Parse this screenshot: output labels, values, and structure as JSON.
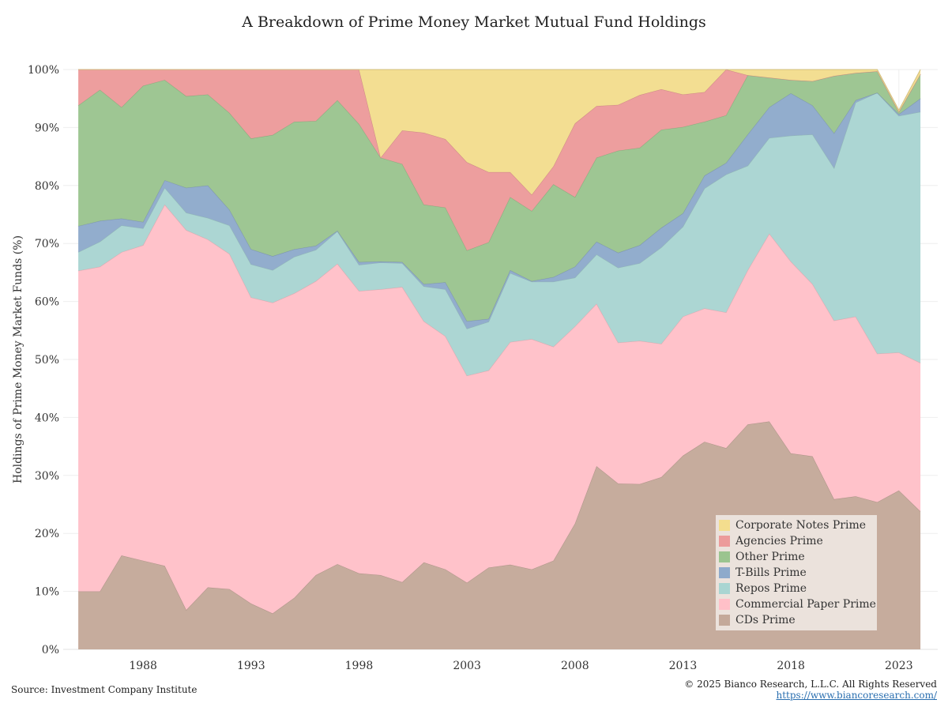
{
  "chart_data": {
    "type": "area",
    "stacked": true,
    "title": "A Breakdown of Prime Money Market Mutual Fund Holdings",
    "xlabel": "",
    "ylabel": "Holdings of Prime Money Market Funds (%)",
    "ylim": [
      0,
      100
    ],
    "xlim": [
      1984.3,
      2024.8
    ],
    "yticks": [
      "0%",
      "10%",
      "20%",
      "30%",
      "40%",
      "50%",
      "60%",
      "70%",
      "80%",
      "90%",
      "100%"
    ],
    "xticks": [
      1988,
      1993,
      1998,
      2003,
      2008,
      2013,
      2018,
      2023
    ],
    "grid": true,
    "legend_position": "bottom-right",
    "x": [
      1985,
      1986,
      1987,
      1988,
      1989,
      1990,
      1991,
      1992,
      1993,
      1994,
      1995,
      1996,
      1997,
      1998,
      1999,
      2000,
      2001,
      2002,
      2003,
      2004,
      2005,
      2006,
      2007,
      2008,
      2009,
      2010,
      2011,
      2012,
      2013,
      2014,
      2015,
      2016,
      2017,
      2018,
      2019,
      2020,
      2021,
      2022,
      2023,
      2024
    ],
    "series": [
      {
        "name": "CDs Prime",
        "color": "#c4a99a",
        "values": [
          10,
          10,
          16.2,
          15.3,
          14.4,
          6.8,
          10.7,
          10.4,
          7.9,
          6.2,
          8.9,
          12.8,
          14.7,
          13.1,
          12.8,
          11.6,
          15.0,
          13.8,
          11.5,
          14.1,
          14.6,
          13.8,
          15.3,
          21.7,
          31.6,
          28.6,
          28.5,
          29.7,
          33.4,
          35.8,
          34.7,
          38.8,
          39.3,
          33.8,
          33.3,
          25.9,
          26.4,
          25.4,
          27.4,
          23.8
        ]
      },
      {
        "name": "Commercial Paper Prime",
        "color": "#ffc0c8",
        "values": [
          55.3,
          56,
          52.3,
          54.4,
          62.3,
          65.5,
          60.0,
          57.8,
          52.8,
          53.6,
          52.5,
          50.7,
          51.8,
          48.7,
          49.3,
          50.9,
          41.6,
          40.2,
          35.7,
          34.0,
          38.4,
          39.7,
          36.9,
          34.0,
          28.0,
          24.3,
          24.7,
          23.0,
          24.0,
          23.0,
          23.4,
          26.6,
          32.4,
          33.1,
          29.7,
          30.8,
          31.0,
          25.6,
          23.8,
          25.6
        ]
      },
      {
        "name": "Repos Prime",
        "color": "#a9d5d2",
        "values": [
          3.2,
          4.3,
          4.6,
          2.9,
          2.9,
          3.0,
          3.7,
          4.9,
          5.7,
          5.6,
          6.3,
          5.4,
          5.6,
          4.5,
          4.6,
          4.1,
          6.0,
          8.1,
          8.1,
          8.4,
          11.9,
          9.9,
          11.2,
          8.4,
          8.5,
          12.9,
          13.4,
          16.6,
          15.5,
          20.7,
          23.8,
          18.0,
          16.5,
          21.7,
          25.8,
          26.3,
          36.9,
          45.0,
          40.8,
          43.3
        ]
      },
      {
        "name": "T-Bills Prime",
        "color": "#8eaacb",
        "values": [
          4.5,
          3.6,
          1.2,
          1.1,
          1.3,
          4.3,
          5.6,
          2.7,
          2.6,
          2.4,
          1.3,
          0.7,
          0.1,
          0.5,
          0.2,
          0.2,
          0.4,
          1.2,
          1.3,
          0.5,
          0.5,
          0.1,
          0.8,
          1.9,
          2.2,
          2.6,
          3.1,
          3.4,
          2.3,
          2.2,
          2.0,
          5.4,
          5.3,
          7.3,
          5.0,
          6.0,
          0.4,
          0.0,
          0.3,
          2.3
        ]
      },
      {
        "name": "Other Prime",
        "color": "#9bc48f",
        "values": [
          20.8,
          22.6,
          19.2,
          23.5,
          17.3,
          15.8,
          15.7,
          16.7,
          19.1,
          20.9,
          22.0,
          21.5,
          22.5,
          23.8,
          17.9,
          16.9,
          13.7,
          12.9,
          12.2,
          13.2,
          12.6,
          12.1,
          16.0,
          12.0,
          14.5,
          17.6,
          16.8,
          16.9,
          14.9,
          9.3,
          8.2,
          10.2,
          5.1,
          2.3,
          4.2,
          9.9,
          4.7,
          3.7,
          0.4,
          4.2
        ]
      },
      {
        "name": "Agencies Prime",
        "color": "#ec9b9b",
        "values": [
          6.2,
          3.5,
          6.5,
          2.8,
          1.8,
          4.6,
          4.3,
          7.5,
          11.9,
          11.3,
          9.0,
          8.9,
          5.3,
          9.4,
          0,
          5.8,
          12.4,
          11.8,
          15.2,
          12.1,
          4.3,
          2.8,
          3.1,
          12.7,
          8.9,
          7.9,
          9.1,
          7.0,
          5.6,
          5.1,
          8.0,
          0,
          0,
          0,
          0,
          0,
          0,
          0,
          0,
          0
        ]
      },
      {
        "name": "Corporate Notes Prime",
        "color": "#f3dd8e",
        "values": [
          0,
          0,
          0,
          0,
          0,
          0,
          0,
          0,
          0,
          0,
          0,
          0,
          0,
          0,
          15.2,
          10.5,
          10.9,
          12.0,
          16.0,
          17.7,
          17.7,
          21.6,
          16.7,
          9.3,
          6.3,
          6.1,
          4.4,
          3.4,
          4.3,
          3.9,
          2.9,
          1.0,
          1.4,
          1.8,
          2.0,
          1.1,
          0.6,
          0.3,
          0.3,
          0.8
        ]
      }
    ]
  },
  "footer": {
    "source": "Source: Investment Company Institute",
    "copyright": "© 2025 Bianco Research, L.L.C. All Rights Reserved",
    "url": "https://www.biancoresearch.com/"
  }
}
